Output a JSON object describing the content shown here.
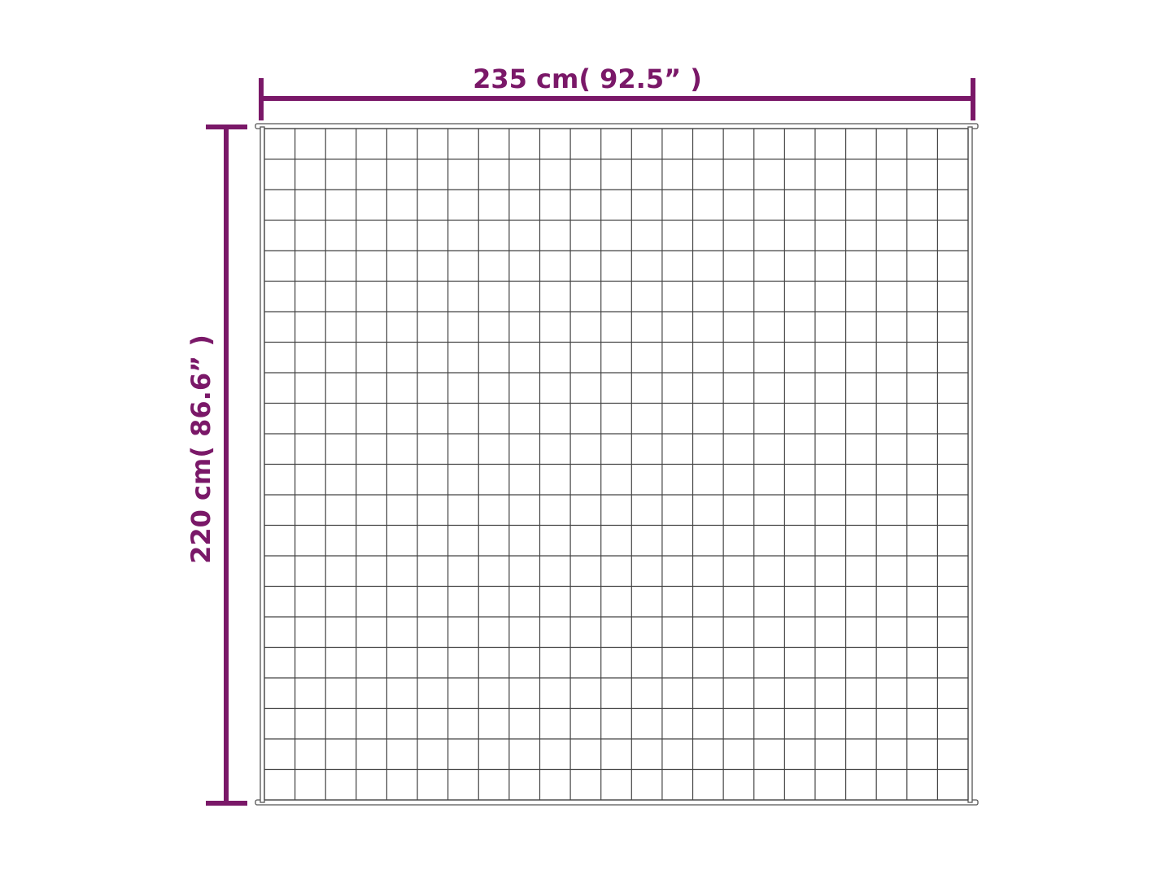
{
  "diagram": {
    "width_label": "235 cm( 92.5”  )",
    "height_label": "220 cm( 86.6”  )",
    "grid_columns": 23,
    "grid_rows": 22,
    "colors": {
      "dimension": "#7a1868",
      "outline": "#444444",
      "background": "#ffffff"
    }
  }
}
